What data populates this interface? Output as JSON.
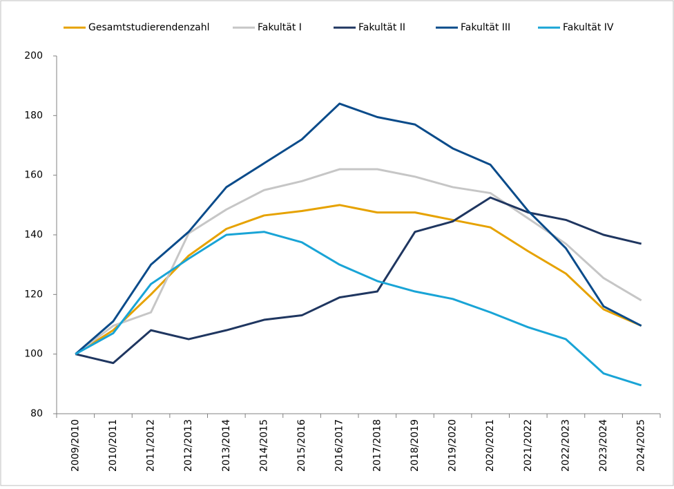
{
  "chart_data": {
    "type": "line",
    "categories": [
      "2009/2010",
      "2010/2011",
      "2011/2012",
      "2012/2013",
      "2013/2014",
      "2014/2015",
      "2015/2016",
      "2016/2017",
      "2017/2018",
      "2018/2019",
      "2019/2020",
      "2020/2021",
      "2021/2022",
      "2022/2023",
      "2023/2024",
      "2024/2025"
    ],
    "series": [
      {
        "name": "Gesamtstudierendenzahl",
        "color": "#e6a200",
        "values": [
          100,
          108,
          120,
          133,
          142,
          146.5,
          148,
          150,
          147.5,
          147.5,
          145,
          142.5,
          134.5,
          127,
          115,
          109.5
        ]
      },
      {
        "name": "Fakultät I",
        "color": "#c6c6c6",
        "values": [
          100,
          109.5,
          114,
          140.5,
          148.5,
          155,
          158,
          162,
          162,
          159.5,
          156,
          154,
          145.5,
          137,
          125.5,
          118
        ]
      },
      {
        "name": "Fakultät II",
        "color": "#1f3660",
        "values": [
          100,
          97,
          108,
          105,
          108,
          111.5,
          113,
          119,
          121,
          141,
          144.5,
          152.5,
          147.5,
          145,
          140,
          137
        ]
      },
      {
        "name": "Fakultät III",
        "color": "#0a4b8a",
        "values": [
          100,
          111,
          130,
          141,
          156,
          164,
          172,
          184,
          179.5,
          177,
          169,
          163.5,
          148,
          135.5,
          116,
          109.5
        ]
      },
      {
        "name": "Fakultät IV",
        "color": "#19a4d6",
        "values": [
          100,
          107,
          123.5,
          132,
          140,
          141,
          137.5,
          130,
          124.5,
          121,
          118.5,
          114,
          109,
          105,
          93.5,
          89.5
        ]
      }
    ],
    "ylim": [
      80,
      200
    ],
    "yticks": [
      80,
      100,
      120,
      140,
      160,
      180,
      200
    ],
    "grid": false,
    "legend": "top"
  }
}
